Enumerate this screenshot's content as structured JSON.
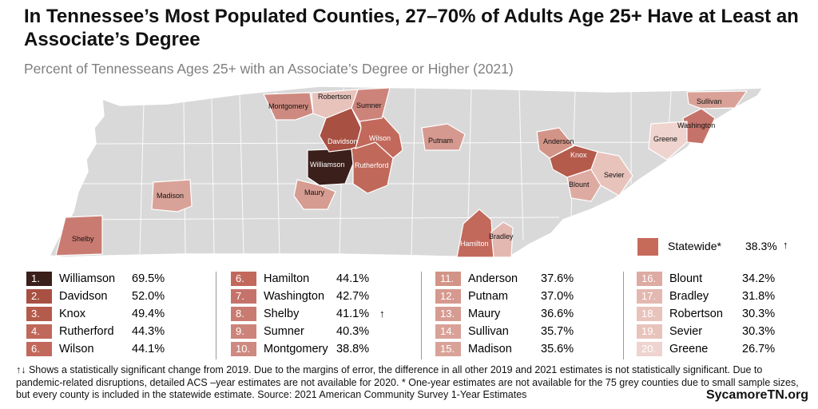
{
  "title": "In Tennessee’s Most Populated Counties, 27–70% of Adults Age 25+ Have at Least an Associate’s Degree",
  "subtitle": "Percent of Tennesseans Ages 25+ with an Associate’s Degree or Higher (2021)",
  "statewide": {
    "label": "Statewide*",
    "value": "38.3%",
    "arrow": "↑",
    "color": "#c66a5a"
  },
  "counties": [
    {
      "rank": "1.",
      "name": "Williamson",
      "value": "69.5%",
      "color": "#3b1f1a",
      "arrow": ""
    },
    {
      "rank": "2.",
      "name": "Davidson",
      "value": "52.0%",
      "color": "#a85042",
      "arrow": ""
    },
    {
      "rank": "3.",
      "name": "Knox",
      "value": "49.4%",
      "color": "#b45b4c",
      "arrow": ""
    },
    {
      "rank": "4.",
      "name": "Rutherford",
      "value": "44.3%",
      "color": "#c0685a",
      "arrow": ""
    },
    {
      "rank": "6.",
      "name": "Wilson",
      "value": "44.1%",
      "color": "#c2695c",
      "arrow": ""
    },
    {
      "rank": "6.",
      "name": "Hamilton",
      "value": "44.1%",
      "color": "#c2695c",
      "arrow": ""
    },
    {
      "rank": "7.",
      "name": "Washington",
      "value": "42.7%",
      "color": "#c5736a",
      "arrow": ""
    },
    {
      "rank": "8.",
      "name": "Shelby",
      "value": "41.1%",
      "color": "#c97b71",
      "arrow": "↑"
    },
    {
      "rank": "9.",
      "name": "Sumner",
      "value": "40.3%",
      "color": "#cc847a",
      "arrow": ""
    },
    {
      "rank": "10.",
      "name": "Montgomery",
      "value": "38.8%",
      "color": "#ce8a80",
      "arrow": ""
    },
    {
      "rank": "11.",
      "name": "Anderson",
      "value": "37.6%",
      "color": "#d39488",
      "arrow": ""
    },
    {
      "rank": "12.",
      "name": "Putnam",
      "value": "37.0%",
      "color": "#d5998f",
      "arrow": ""
    },
    {
      "rank": "13.",
      "name": "Maury",
      "value": "36.6%",
      "color": "#d69c92",
      "arrow": ""
    },
    {
      "rank": "14.",
      "name": "Sullivan",
      "value": "35.7%",
      "color": "#d9a197",
      "arrow": ""
    },
    {
      "rank": "15.",
      "name": "Madison",
      "value": "35.6%",
      "color": "#d9a298",
      "arrow": ""
    },
    {
      "rank": "16.",
      "name": "Blount",
      "value": "34.2%",
      "color": "#ddaba2",
      "arrow": ""
    },
    {
      "rank": "17.",
      "name": "Bradley",
      "value": "31.8%",
      "color": "#e3b8b0",
      "arrow": ""
    },
    {
      "rank": "18.",
      "name": "Robertson",
      "value": "30.3%",
      "color": "#e8c3bc",
      "arrow": ""
    },
    {
      "rank": "19.",
      "name": "Sevier",
      "value": "30.3%",
      "color": "#e8c3bc",
      "arrow": ""
    },
    {
      "rank": "20.",
      "name": "Greene",
      "value": "26.7%",
      "color": "#efd3ce",
      "arrow": ""
    }
  ],
  "map": {
    "base_color": "#d9d9d9",
    "border_color": "#ffffff"
  },
  "footnote": "↑↓ Shows a statistically significant change from 2019. Due to the margins of error, the difference in all other 2019 and 2021 estimates is not statistically significant. Due to pandemic-related disruptions, detailed ACS –year estimates are not available for 2020. * One-year estimates are not available for the 75 grey counties due to small sample sizes, but every county is included in the statewide estimate. Source: 2021 American Community Survey 1-Year Estimates",
  "brand": "SycamoreTN.org"
}
